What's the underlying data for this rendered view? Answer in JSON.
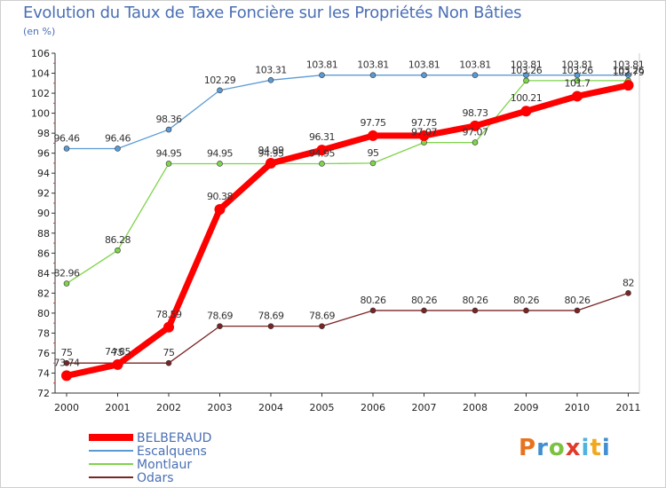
{
  "chart_data": {
    "type": "line",
    "title": "Evolution du Taux de Taxe Foncière sur les Propriétés Non Bâties",
    "subtitle": "(en %)",
    "xlabel": "",
    "ylabel": "",
    "ylim": [
      72,
      106
    ],
    "yticks": [
      72,
      74,
      76,
      78,
      80,
      82,
      84,
      86,
      88,
      90,
      92,
      94,
      96,
      98,
      100,
      102,
      104,
      106
    ],
    "categories": [
      "2000",
      "2001",
      "2002",
      "2003",
      "2004",
      "2005",
      "2006",
      "2007",
      "2008",
      "2009",
      "2010",
      "2011"
    ],
    "grid": false,
    "legend_position": "bottom-left",
    "series": [
      {
        "name": "BELBERAUD",
        "color": "#ff0000",
        "values": [
          73.74,
          74.85,
          78.59,
          90.38,
          94.99,
          96.31,
          97.75,
          97.75,
          98.73,
          100.21,
          101.7,
          102.79
        ],
        "labels": [
          "73.74",
          "74.85",
          "78.59",
          "90.38",
          "94.99",
          "96.31",
          "97.75",
          "97.75",
          "98.73",
          "100.21",
          "101.7",
          "102.79"
        ]
      },
      {
        "name": "Escalquens",
        "color": "#5b9bd5",
        "values": [
          96.46,
          96.46,
          98.36,
          102.29,
          103.31,
          103.81,
          103.81,
          103.81,
          103.81,
          103.81,
          103.81,
          103.81
        ],
        "labels": [
          "96.46",
          "96.46",
          "98.36",
          "102.29",
          "103.31",
          "103.81",
          "103.81",
          "103.81",
          "103.81",
          "103.81",
          "103.81",
          "103.81"
        ]
      },
      {
        "name": "Montlaur",
        "color": "#7fd44a",
        "values": [
          82.96,
          86.28,
          94.95,
          94.95,
          94.95,
          94.95,
          95,
          97.07,
          97.07,
          103.26,
          103.26,
          103.26
        ],
        "labels": [
          "82.96",
          "86.28",
          "94.95",
          "94.95",
          "94.95",
          "94.95",
          "95",
          "97.07",
          "97.07",
          "103.26",
          "103.26",
          "103.26"
        ]
      },
      {
        "name": "Odars",
        "color": "#7a2424",
        "values": [
          75,
          75,
          75,
          78.69,
          78.69,
          78.69,
          80.26,
          80.26,
          80.26,
          80.26,
          80.26,
          82
        ],
        "labels": [
          "75",
          "75",
          "75",
          "78.69",
          "78.69",
          "78.69",
          "80.26",
          "80.26",
          "80.26",
          "80.26",
          "80.26",
          "82"
        ]
      }
    ]
  },
  "logo": {
    "text": "Proxiti",
    "colors": [
      "#e8731e",
      "#3f8fd2",
      "#7cc242",
      "#e23a2a",
      "#4fb3e0",
      "#f2a81d",
      "#3f8fd2"
    ]
  }
}
